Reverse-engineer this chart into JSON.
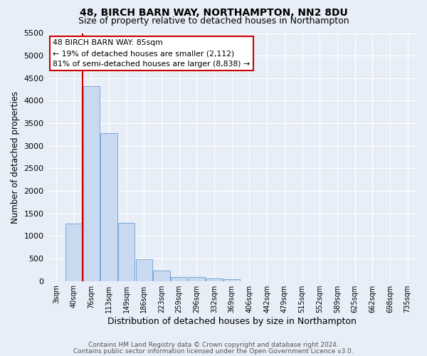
{
  "title": "48, BIRCH BARN WAY, NORTHAMPTON, NN2 8DU",
  "subtitle": "Size of property relative to detached houses in Northampton",
  "xlabel": "Distribution of detached houses by size in Northampton",
  "ylabel": "Number of detached properties",
  "bar_labels": [
    "3sqm",
    "40sqm",
    "76sqm",
    "113sqm",
    "149sqm",
    "186sqm",
    "223sqm",
    "259sqm",
    "296sqm",
    "332sqm",
    "369sqm",
    "406sqm",
    "442sqm",
    "479sqm",
    "515sqm",
    "552sqm",
    "589sqm",
    "625sqm",
    "662sqm",
    "698sqm",
    "735sqm"
  ],
  "bar_values": [
    0,
    1270,
    4330,
    3280,
    1290,
    480,
    230,
    90,
    90,
    50,
    40,
    0,
    0,
    0,
    0,
    0,
    0,
    0,
    0,
    0,
    0
  ],
  "bar_color": "#c9d9f0",
  "bar_edge_color": "#7aa8d8",
  "vline_color": "#cc0000",
  "vline_x_index": 2,
  "ylim": [
    0,
    5500
  ],
  "yticks": [
    0,
    500,
    1000,
    1500,
    2000,
    2500,
    3000,
    3500,
    4000,
    4500,
    5000,
    5500
  ],
  "annotation_title": "48 BIRCH BARN WAY: 85sqm",
  "annotation_line1": "← 19% of detached houses are smaller (2,112)",
  "annotation_line2": "81% of semi-detached houses are larger (8,838) →",
  "annotation_box_facecolor": "#ffffff",
  "annotation_box_edgecolor": "#cc0000",
  "footer1": "Contains HM Land Registry data © Crown copyright and database right 2024.",
  "footer2": "Contains public sector information licensed under the Open Government Licence v3.0.",
  "bg_color": "#e8eef7",
  "plot_bg_color": "#e8eef7",
  "title_fontsize": 10,
  "subtitle_fontsize": 9
}
